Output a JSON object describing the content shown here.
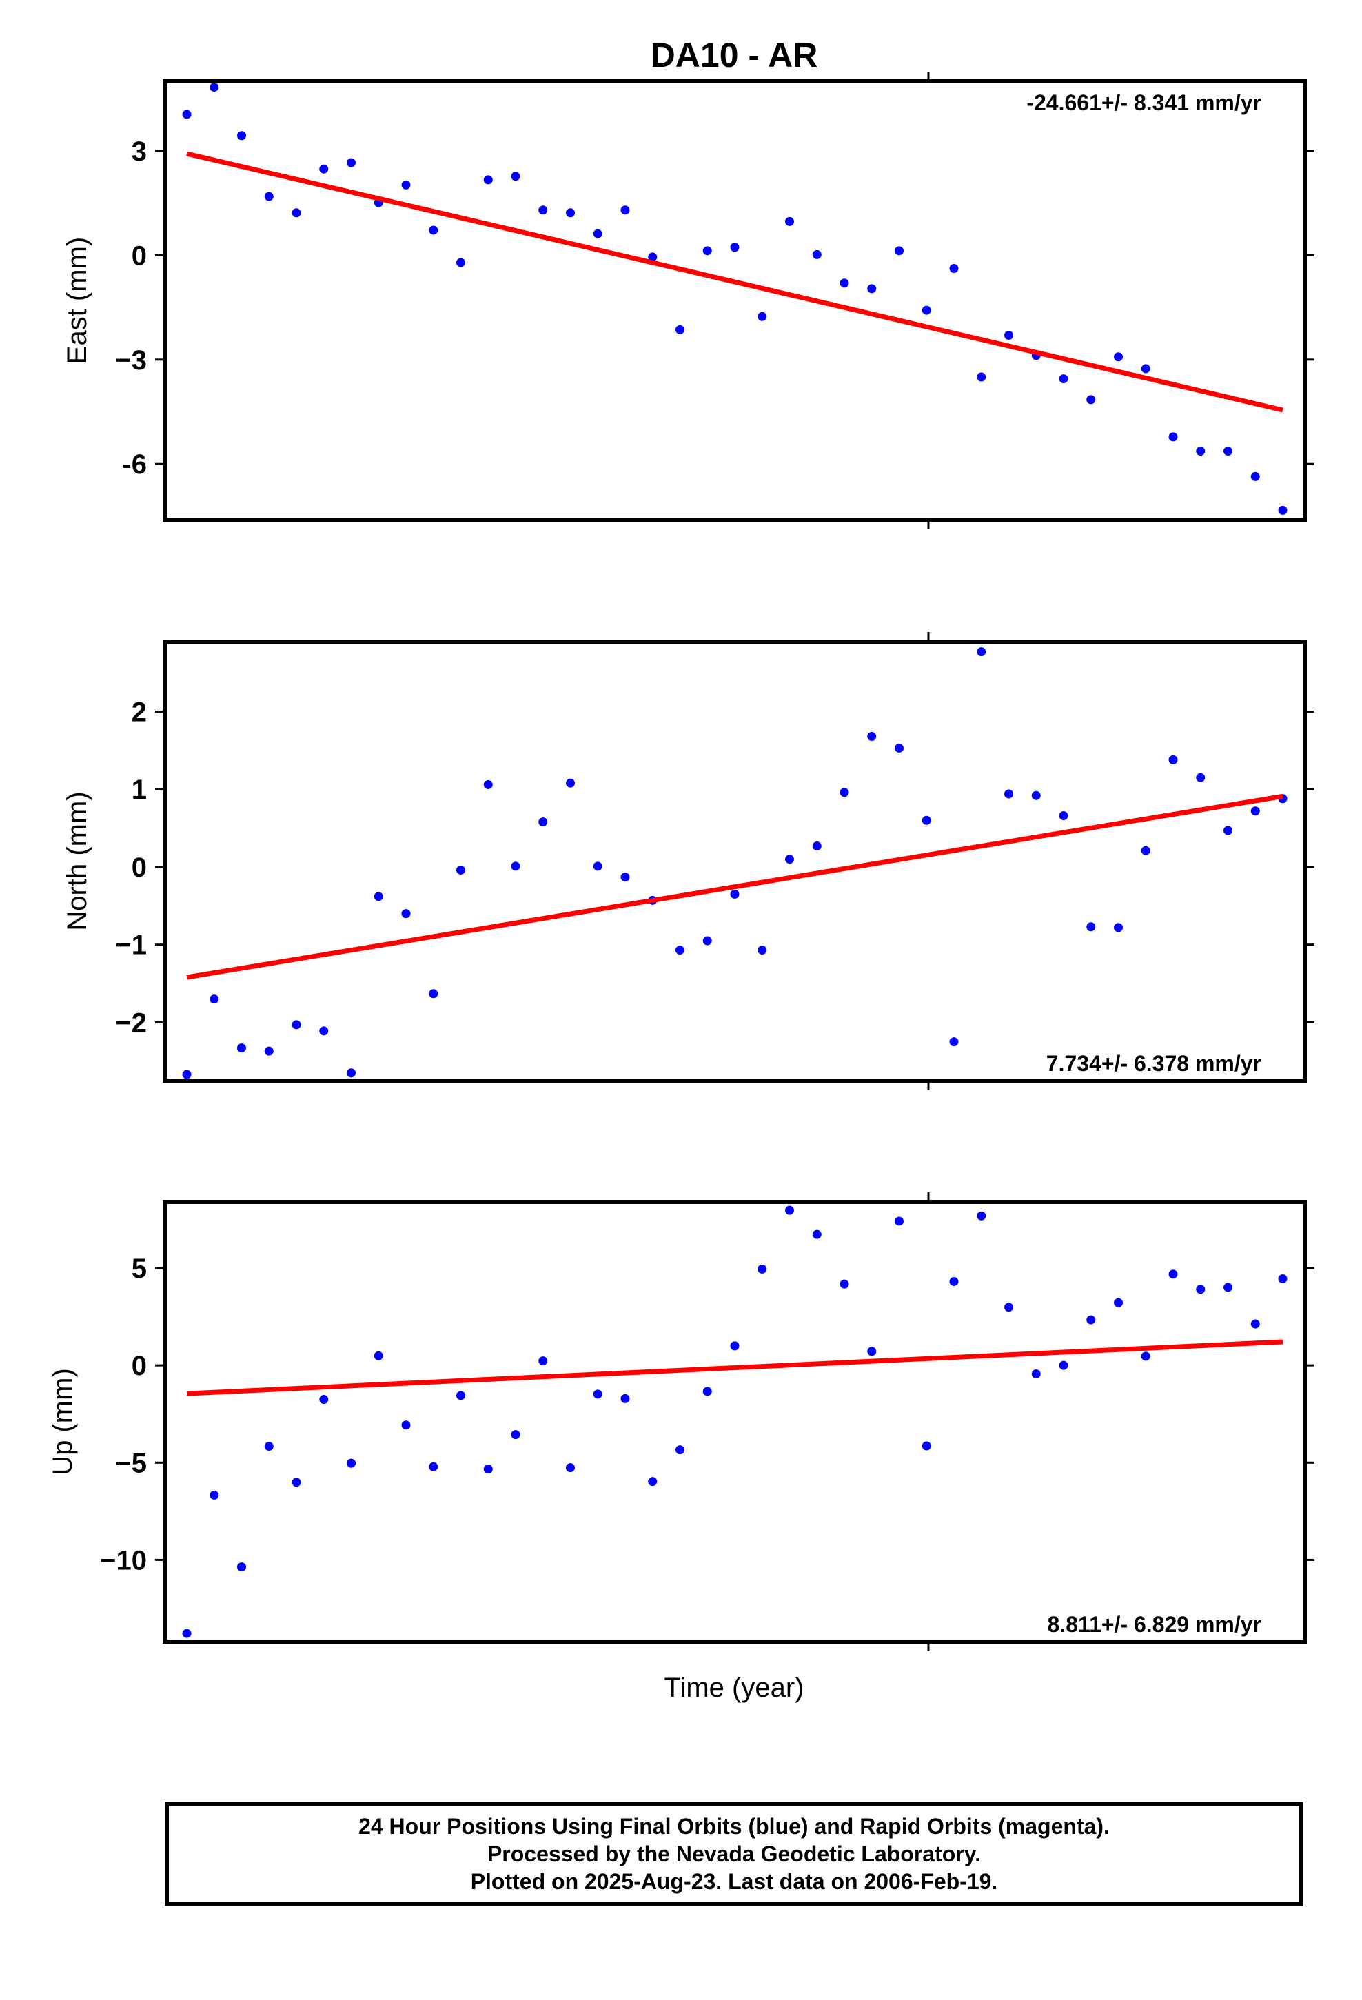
{
  "title": "DA10 - AR",
  "xlabel": "Time (year)",
  "footer": {
    "line1": "24 Hour Positions Using Final Orbits (blue) and Rapid Orbits (magenta).",
    "line2": "Processed by the Nevada Geodetic Laboratory.",
    "line3": "Plotted on 2025-Aug-23. Last data on 2006-Feb-19."
  },
  "colors": {
    "points": "#0000ff",
    "fit": "#ff0000",
    "frame": "#000000"
  },
  "chart_data": [
    {
      "type": "scatter",
      "id": "east",
      "ylabel": "East (mm)",
      "ylim": [
        -7.6,
        5.0
      ],
      "yticks": [
        3,
        0,
        -3,
        -6
      ],
      "ytick_labels": [
        "3",
        "0",
        "−3",
        "-6"
      ],
      "rate_label": "-24.661+/- 8.341 mm/yr",
      "rate_position": "top-right",
      "x": [
        0,
        1,
        2,
        3,
        4,
        5,
        6,
        7,
        8,
        9,
        10,
        11,
        12,
        13,
        14,
        15,
        16,
        17,
        18,
        19,
        20,
        21,
        22,
        23,
        24,
        25,
        26,
        27,
        28,
        29,
        30,
        31,
        32,
        33,
        34,
        35,
        36,
        37,
        38,
        39,
        40
      ],
      "y": [
        4.05,
        4.83,
        3.44,
        1.69,
        1.22,
        2.48,
        2.66,
        1.51,
        2.02,
        0.72,
        -0.21,
        2.17,
        2.27,
        1.3,
        1.22,
        0.62,
        1.3,
        -0.05,
        -2.14,
        0.13,
        0.23,
        -1.76,
        0.97,
        0.02,
        -0.8,
        -0.96,
        0.13,
        -1.58,
        -0.38,
        -3.5,
        -2.3,
        -2.88,
        -3.55,
        -4.15,
        -2.92,
        -3.26,
        -5.22,
        -5.63,
        -5.63,
        -6.36,
        -7.33
      ],
      "fit": [
        2.92,
        -4.45
      ]
    },
    {
      "type": "scatter",
      "id": "north",
      "ylabel": "North (mm)",
      "ylim": [
        -2.75,
        2.9
      ],
      "yticks": [
        2,
        1,
        0,
        -1,
        -2
      ],
      "ytick_labels": [
        "2",
        "1",
        "0",
        "−1",
        "−2"
      ],
      "rate_label": "7.734+/- 6.378 mm/yr",
      "rate_position": "bottom-right",
      "x": [
        0,
        1,
        2,
        3,
        4,
        5,
        6,
        7,
        8,
        9,
        10,
        11,
        12,
        13,
        14,
        15,
        16,
        17,
        18,
        19,
        20,
        21,
        22,
        23,
        24,
        25,
        26,
        27,
        28,
        29,
        30,
        31,
        32,
        33,
        34,
        35,
        36,
        37,
        38,
        39,
        40
      ],
      "y": [
        -2.67,
        -1.7,
        -2.33,
        -2.37,
        -2.03,
        -2.11,
        -2.65,
        -0.38,
        -0.6,
        -1.63,
        -0.04,
        1.06,
        0.01,
        0.58,
        1.08,
        0.01,
        -0.13,
        -0.43,
        -1.07,
        -0.95,
        -0.35,
        -1.07,
        0.1,
        0.27,
        0.96,
        1.68,
        1.53,
        0.6,
        -2.25,
        2.77,
        0.94,
        0.92,
        0.66,
        -0.77,
        -0.78,
        0.21,
        1.38,
        1.15,
        0.47,
        0.72,
        0.88
      ],
      "fit": [
        -1.42,
        0.91
      ]
    },
    {
      "type": "scatter",
      "id": "up",
      "ylabel": "Up (mm)",
      "ylim": [
        -14.2,
        8.4
      ],
      "yticks": [
        5,
        0,
        -5,
        -10
      ],
      "ytick_labels": [
        "5",
        "0",
        "−5",
        "−10"
      ],
      "rate_label": "8.811+/- 6.829 mm/yr",
      "rate_position": "bottom-right",
      "x": [
        0,
        1,
        2,
        3,
        4,
        5,
        6,
        7,
        8,
        9,
        10,
        11,
        12,
        13,
        14,
        15,
        16,
        17,
        18,
        19,
        20,
        21,
        22,
        23,
        24,
        25,
        26,
        27,
        28,
        29,
        30,
        31,
        32,
        33,
        34,
        35,
        36,
        37,
        38,
        39,
        40
      ],
      "y": [
        -13.78,
        -6.67,
        -10.36,
        -4.16,
        -6.01,
        -1.75,
        -5.03,
        0.49,
        -3.07,
        -5.21,
        -1.55,
        -5.33,
        -3.56,
        0.23,
        -5.26,
        -1.48,
        -1.71,
        -5.97,
        -4.34,
        -1.34,
        1.0,
        4.95,
        7.97,
        6.73,
        4.18,
        0.72,
        7.41,
        -4.14,
        4.31,
        7.68,
        2.99,
        -0.44,
        0.0,
        2.34,
        3.22,
        0.47,
        4.69,
        3.91,
        4.01,
        2.13,
        4.45
      ],
      "fit": [
        -1.45,
        1.21
      ]
    }
  ]
}
